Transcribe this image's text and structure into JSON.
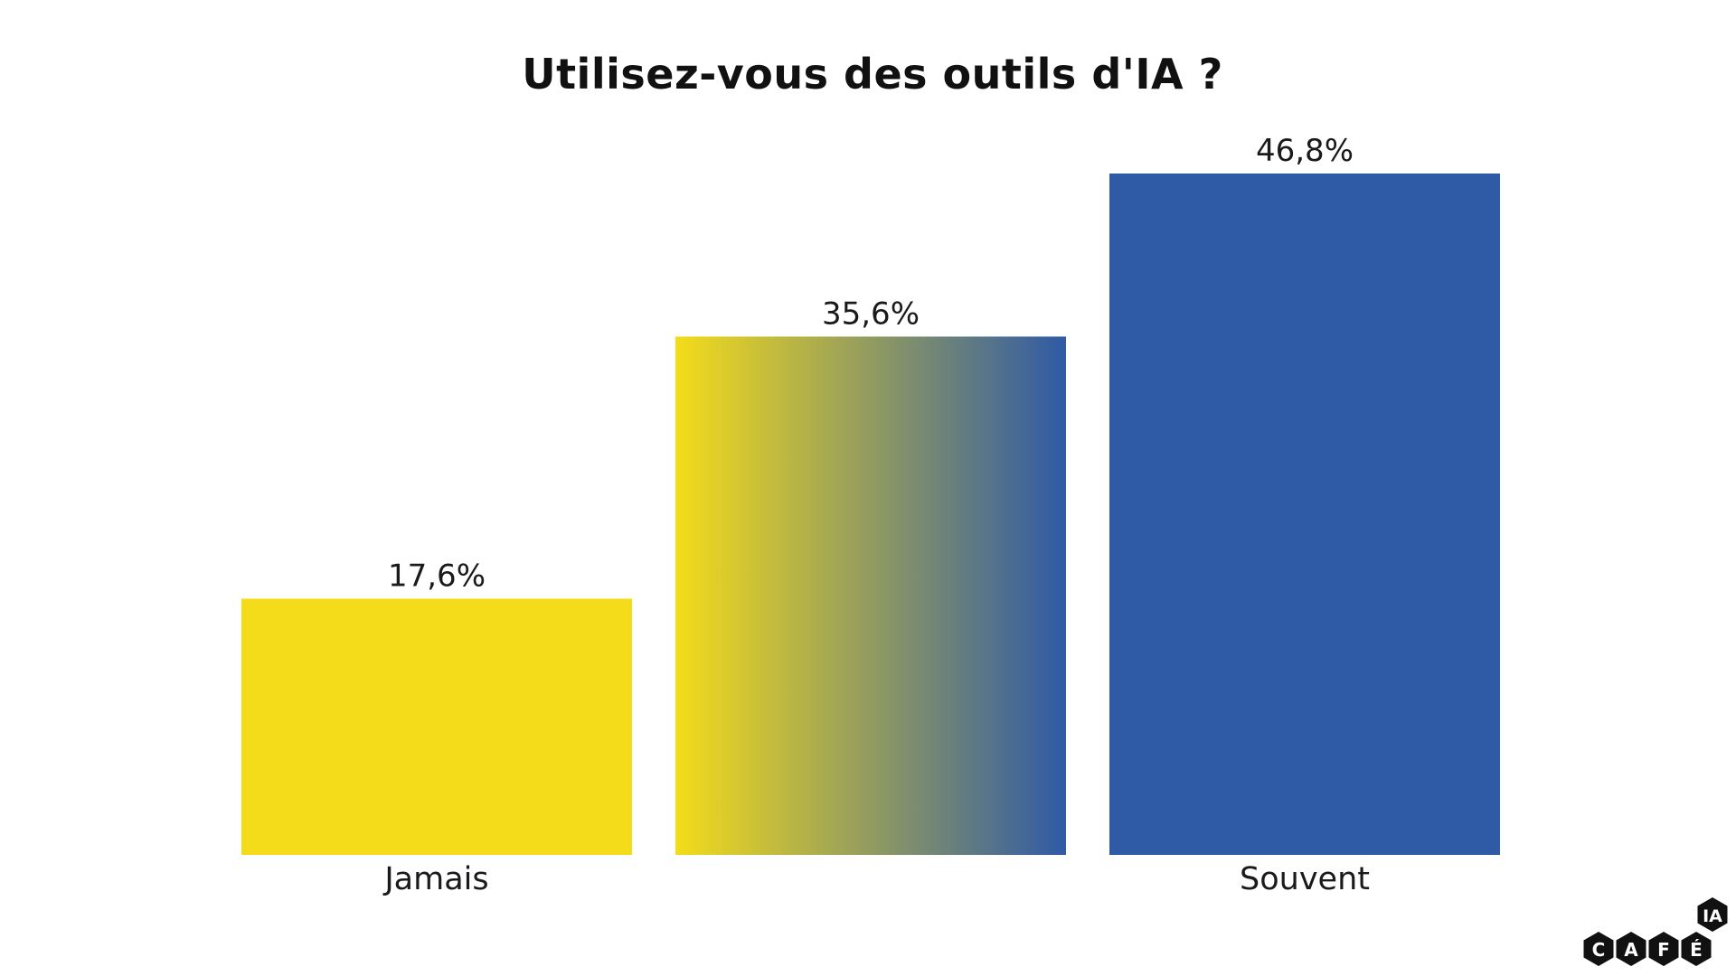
{
  "chart_data": {
    "type": "bar",
    "title": "Utilisez-vous des outils d'IA ?",
    "categories": [
      "Jamais",
      "",
      "Souvent"
    ],
    "values": [
      17.6,
      35.6,
      46.8
    ],
    "value_labels": [
      "17,6%",
      "35,6%",
      "46,8%"
    ],
    "bar_fills": [
      "#f4dc1a",
      "gradient",
      "#2f5aa6"
    ],
    "gradient": {
      "from": "#f4dc1a",
      "to": "#2f5aa6",
      "direction": "left-to-right"
    },
    "xlabel": "",
    "ylabel": "",
    "ylim": [
      0,
      46.8
    ],
    "grid": false,
    "legend": "none"
  },
  "logo": {
    "letters": [
      "C",
      "A",
      "F",
      "É"
    ],
    "superscript": "IA",
    "color": "#111111"
  }
}
